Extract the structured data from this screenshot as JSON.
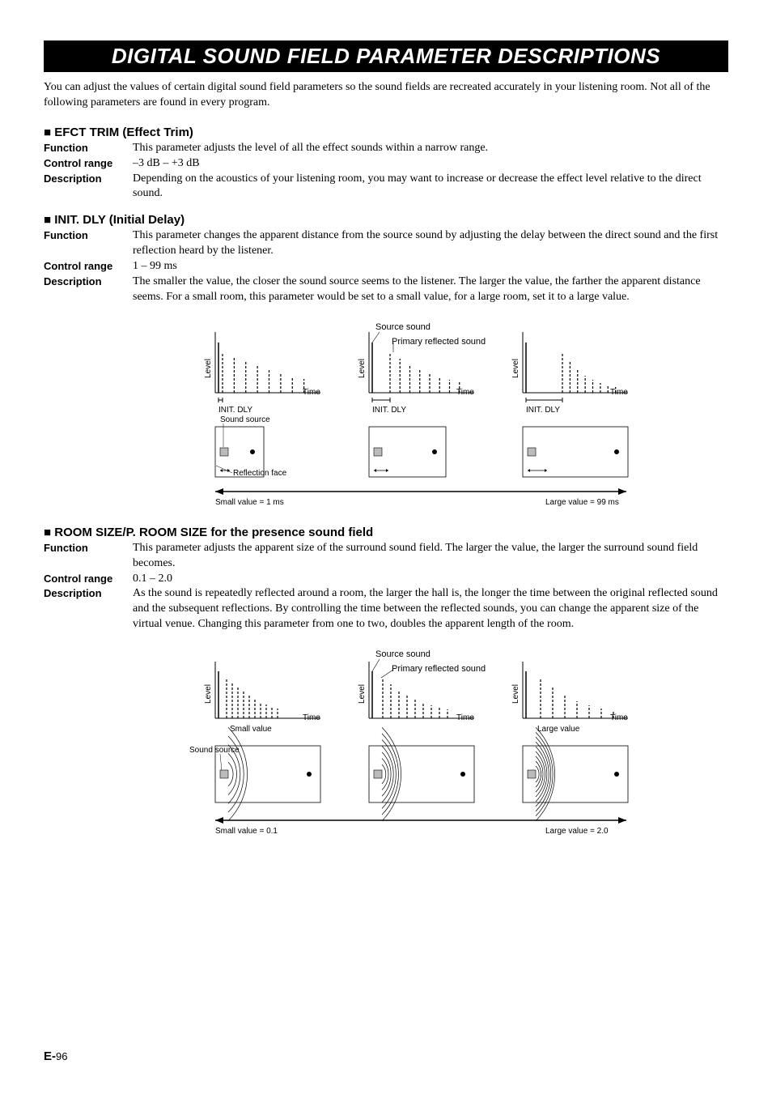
{
  "title": "DIGITAL SOUND FIELD PARAMETER DESCRIPTIONS",
  "intro": "You can adjust the values of certain digital sound field parameters so the sound fields are recreated accurately in your listening room. Not all of the following parameters are found in every program.",
  "sections": [
    {
      "head": "EFCT TRIM (Effect Trim)",
      "rows": [
        {
          "label": "Function",
          "text": "This parameter adjusts the level of all the effect sounds within a narrow range."
        },
        {
          "label": "Control range",
          "text": "–3 dB – +3 dB"
        },
        {
          "label": "Description",
          "text": "Depending on the acoustics of your listening room, you may want to increase or decrease the effect level relative to the direct sound."
        }
      ]
    },
    {
      "head": "INIT. DLY (Initial Delay)",
      "rows": [
        {
          "label": "Function",
          "text": "This parameter changes the apparent distance from the source sound by adjusting the delay between the direct sound and the first reflection heard by the listener."
        },
        {
          "label": "Control range",
          "text": "1 – 99 ms"
        },
        {
          "label": "Description",
          "text": "The smaller the value, the closer the sound source seems to the listener. The larger the value, the farther the apparent distance seems. For a small room, this parameter would be set to a small value, for a large room, set it to a large value."
        }
      ]
    },
    {
      "head": "ROOM SIZE/P. ROOM SIZE for the presence sound field",
      "rows": [
        {
          "label": "Function",
          "text": "This parameter adjusts the apparent size of the surround sound field. The larger the value, the larger the surround sound field becomes."
        },
        {
          "label": "Control range",
          "text": "0.1 – 2.0"
        },
        {
          "label": "Description",
          "text": "As the sound is repeatedly reflected around a room, the larger the hall is, the longer the time between the original reflected sound and the subsequent reflections. By controlling the time between the reflected sounds, you can change the apparent size of the virtual venue. Changing this parameter from one to two, doubles the apparent length of the room."
        }
      ]
    }
  ],
  "diagram1": {
    "source_sound": "Source sound",
    "primary_reflected": "Primary reflected sound",
    "level": "Level",
    "time": "Time",
    "init_dly": "INIT. DLY",
    "sound_source": "Sound source",
    "reflection_face": "Reflection face",
    "small_label": "Small value = 1 ms",
    "large_label": "Large value = 99 ms",
    "heights": {
      "panel1_source": 62,
      "panel1_bars": [
        50,
        44,
        38,
        33,
        28,
        24,
        20,
        17
      ],
      "panel1_gap": 5,
      "panel2_gap": 22,
      "panel2_bars": [
        50,
        42,
        35,
        29,
        24,
        20,
        16,
        13
      ],
      "panel3_gap": 45,
      "panel3_bars": [
        50,
        38,
        28,
        21,
        16,
        12,
        9,
        7
      ]
    },
    "colors": {
      "stroke": "#000000",
      "dash": "#000000",
      "fill_hatch": "#888888"
    }
  },
  "diagram2": {
    "source_sound": "Source sound",
    "primary_reflected": "Primary reflected sound",
    "level": "Level",
    "time": "Time",
    "sound_source": "Sound source",
    "small_label_top": "Small value",
    "large_label_top": "Large value",
    "small_label": "Small value = 0.1",
    "large_label": "Large value = 2.0",
    "heights": {
      "panel1_bars": [
        50,
        44,
        38,
        33,
        28,
        24,
        20,
        17,
        14,
        12
      ],
      "panel1_spacing": 4,
      "panel2_bars": [
        50,
        42,
        35,
        29,
        24,
        20,
        16,
        13,
        11
      ],
      "panel2_spacing": 7,
      "panel3_bars": [
        50,
        38,
        28,
        21,
        16,
        12,
        9
      ],
      "panel3_spacing": 12
    }
  },
  "page": {
    "prefix": "E-",
    "num": "96"
  }
}
